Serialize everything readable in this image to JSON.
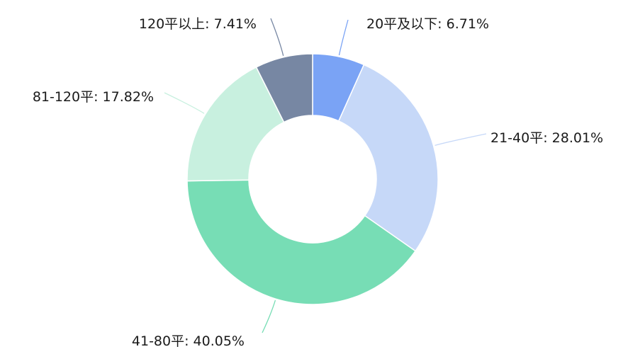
{
  "chart_data": {
    "type": "pie",
    "variant": "donut",
    "slices": [
      {
        "name": "20平及以下",
        "value": 6.71,
        "label": "20平及以下: 6.71%",
        "color": "#7aa3f5"
      },
      {
        "name": "21-40平",
        "value": 28.01,
        "label": "21-40平: 28.01%",
        "color": "#c6d8f8"
      },
      {
        "name": "41-80平",
        "value": 40.05,
        "label": "41-80平: 40.05%",
        "color": "#77ddb5"
      },
      {
        "name": "81-120平",
        "value": 17.82,
        "label": "81-120平: 17.82%",
        "color": "#c8f0df"
      },
      {
        "name": "120平以上",
        "value": 7.41,
        "label": "120平以上: 7.41%",
        "color": "#7787a3"
      }
    ],
    "legend": false
  }
}
